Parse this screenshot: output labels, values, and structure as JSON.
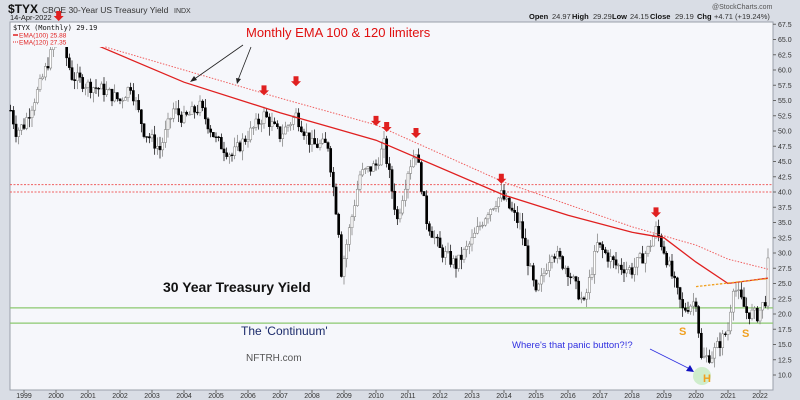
{
  "header": {
    "symbol": "$TYX",
    "name": "CBOE 30-Year US Treasury Yield",
    "exchange": "INDX",
    "date": "14-Apr-2022",
    "copyright": "@StockCharts.com",
    "quote": {
      "open_label": "Open",
      "open": "24.97",
      "high_label": "High",
      "high": "29.29",
      "low_label": "Low",
      "low": "24.15",
      "close_label": "Close",
      "close": "29.19",
      "chg_label": "Chg",
      "chg": "+4.71 (+19.24%)"
    }
  },
  "legend": {
    "main": "$TYX (Monthly) 29.19",
    "ema100": "EMA(100) 25.88",
    "ema120": "EMA(120) 27.35"
  },
  "colors": {
    "ema": "#e02020",
    "resistance": "#f06060",
    "support": "#8cc870",
    "neckline": "#f0a020",
    "annotation_red": "#e01010",
    "annotation_blue": "#3030e0",
    "annotation_navy": "#1a2a6a",
    "shs": "#f0a020"
  },
  "chart_data": {
    "type": "candlestick",
    "interval": "monthly",
    "ylim": [
      8.5,
      69
    ],
    "yticks": [
      "10.0",
      "12.5",
      "15.0",
      "17.5",
      "20.0",
      "22.5",
      "25.0",
      "27.5",
      "30.0",
      "32.5",
      "35.0",
      "37.5",
      "40.0",
      "42.5",
      "45.0",
      "47.5",
      "50.0",
      "52.5",
      "55.0",
      "57.5",
      "60.0",
      "62.5",
      "65.0",
      "67.5"
    ],
    "xticks": [
      "1999",
      "2000",
      "2001",
      "2002",
      "2003",
      "2004",
      "2005",
      "2006",
      "2007",
      "2008",
      "2009",
      "2010",
      "2011",
      "2012",
      "2013",
      "2014",
      "2015",
      "2016",
      "2017",
      "2018",
      "2019",
      "2020",
      "2021",
      "2022"
    ],
    "close_path": [
      [
        "1998-08",
        53.4
      ],
      [
        "1998-10",
        50.0
      ],
      [
        "1999-01",
        51.0
      ],
      [
        "1999-07",
        57.5
      ],
      [
        "2000-01",
        65.0
      ],
      [
        "2000-02",
        66.5
      ],
      [
        "2000-07",
        59.0
      ],
      [
        "2001-01",
        57.5
      ],
      [
        "2001-07",
        56.7
      ],
      [
        "2002-01",
        55.0
      ],
      [
        "2002-05",
        57.5
      ],
      [
        "2002-10",
        50.0
      ],
      [
        "2003-04",
        47.0
      ],
      [
        "2003-09",
        53.5
      ],
      [
        "2004-01",
        52.0
      ],
      [
        "2004-07",
        54.0
      ],
      [
        "2005-01",
        48.5
      ],
      [
        "2005-07",
        46.0
      ],
      [
        "2006-01",
        49.3
      ],
      [
        "2006-07",
        52.6
      ],
      [
        "2007-01",
        49.3
      ],
      [
        "2007-07",
        52.6
      ],
      [
        "2008-01",
        47.7
      ],
      [
        "2008-07",
        47.7
      ],
      [
        "2008-11",
        33.8
      ],
      [
        "2008-12",
        27.0
      ],
      [
        "2009-07",
        42.8
      ],
      [
        "2010-01",
        44.4
      ],
      [
        "2010-04",
        47.7
      ],
      [
        "2010-09",
        35.4
      ],
      [
        "2011-01",
        43.6
      ],
      [
        "2011-04",
        46.9
      ],
      [
        "2011-08",
        35.4
      ],
      [
        "2012-01",
        30.5
      ],
      [
        "2012-07",
        28.0
      ],
      [
        "2013-01",
        32.0
      ],
      [
        "2013-07",
        37.0
      ],
      [
        "2013-12",
        39.5
      ],
      [
        "2014-07",
        34.6
      ],
      [
        "2015-01",
        23.0
      ],
      [
        "2015-07",
        30.5
      ],
      [
        "2016-01",
        27.2
      ],
      [
        "2016-07",
        21.5
      ],
      [
        "2016-12",
        31.3
      ],
      [
        "2017-07",
        28.0
      ],
      [
        "2018-01",
        27.2
      ],
      [
        "2018-07",
        30.5
      ],
      [
        "2018-10",
        33.8
      ],
      [
        "2019-01",
        30.5
      ],
      [
        "2019-08",
        20.6
      ],
      [
        "2020-01",
        22.3
      ],
      [
        "2020-03",
        12.5
      ],
      [
        "2020-07",
        13.3
      ],
      [
        "2021-01",
        17.4
      ],
      [
        "2021-03",
        24.8
      ],
      [
        "2021-08",
        20.3
      ],
      [
        "2021-12",
        19.8
      ],
      [
        "2022-03",
        22.3
      ],
      [
        "2022-04",
        29.19
      ]
    ],
    "ema100": [
      [
        "2000-01",
        66.9
      ],
      [
        "2004-01",
        58.0
      ],
      [
        "2007-01",
        53.0
      ],
      [
        "2010-01",
        48.5
      ],
      [
        "2014-01",
        39.5
      ],
      [
        "2016-01",
        36.2
      ],
      [
        "2018-01",
        33.4
      ],
      [
        "2019-01",
        32.5
      ],
      [
        "2020-01",
        28.5
      ],
      [
        "2021-01",
        25.0
      ],
      [
        "2022-04",
        25.88
      ]
    ],
    "ema120": [
      [
        "2001-01",
        64.6
      ],
      [
        "2004-01",
        60.0
      ],
      [
        "2007-01",
        55.4
      ],
      [
        "2010-01",
        51.0
      ],
      [
        "2014-01",
        41.6
      ],
      [
        "2018-01",
        34.3
      ],
      [
        "2020-01",
        31.3
      ],
      [
        "2021-01",
        29.0
      ],
      [
        "2022-04",
        27.35
      ]
    ],
    "resistance_lines": [
      41.2,
      40.0
    ],
    "support_lines": [
      21.0,
      18.5
    ],
    "neckline": [
      [
        "2020-01",
        24.5
      ],
      [
        "2022-04",
        25.8
      ]
    ],
    "arrows": [
      [
        "2000-02",
        69.0
      ],
      [
        "2006-07",
        56.5
      ],
      [
        "2007-07",
        58.0
      ],
      [
        "2010-01",
        51.5
      ],
      [
        "2010-05",
        50.5
      ],
      [
        "2011-04",
        49.5
      ],
      [
        "2013-12",
        42.0
      ],
      [
        "2018-10",
        36.5
      ]
    ],
    "annotations": {
      "ema_note": "Monthly EMA 100 & 120 limiters",
      "title": "30 Year Treasury Yield",
      "continuum": "The 'Continuum'",
      "site": "NFTRH.com",
      "panic": "Where's that panic button?!?",
      "left_shoulder": "S",
      "head": "H",
      "right_shoulder": "S"
    }
  }
}
